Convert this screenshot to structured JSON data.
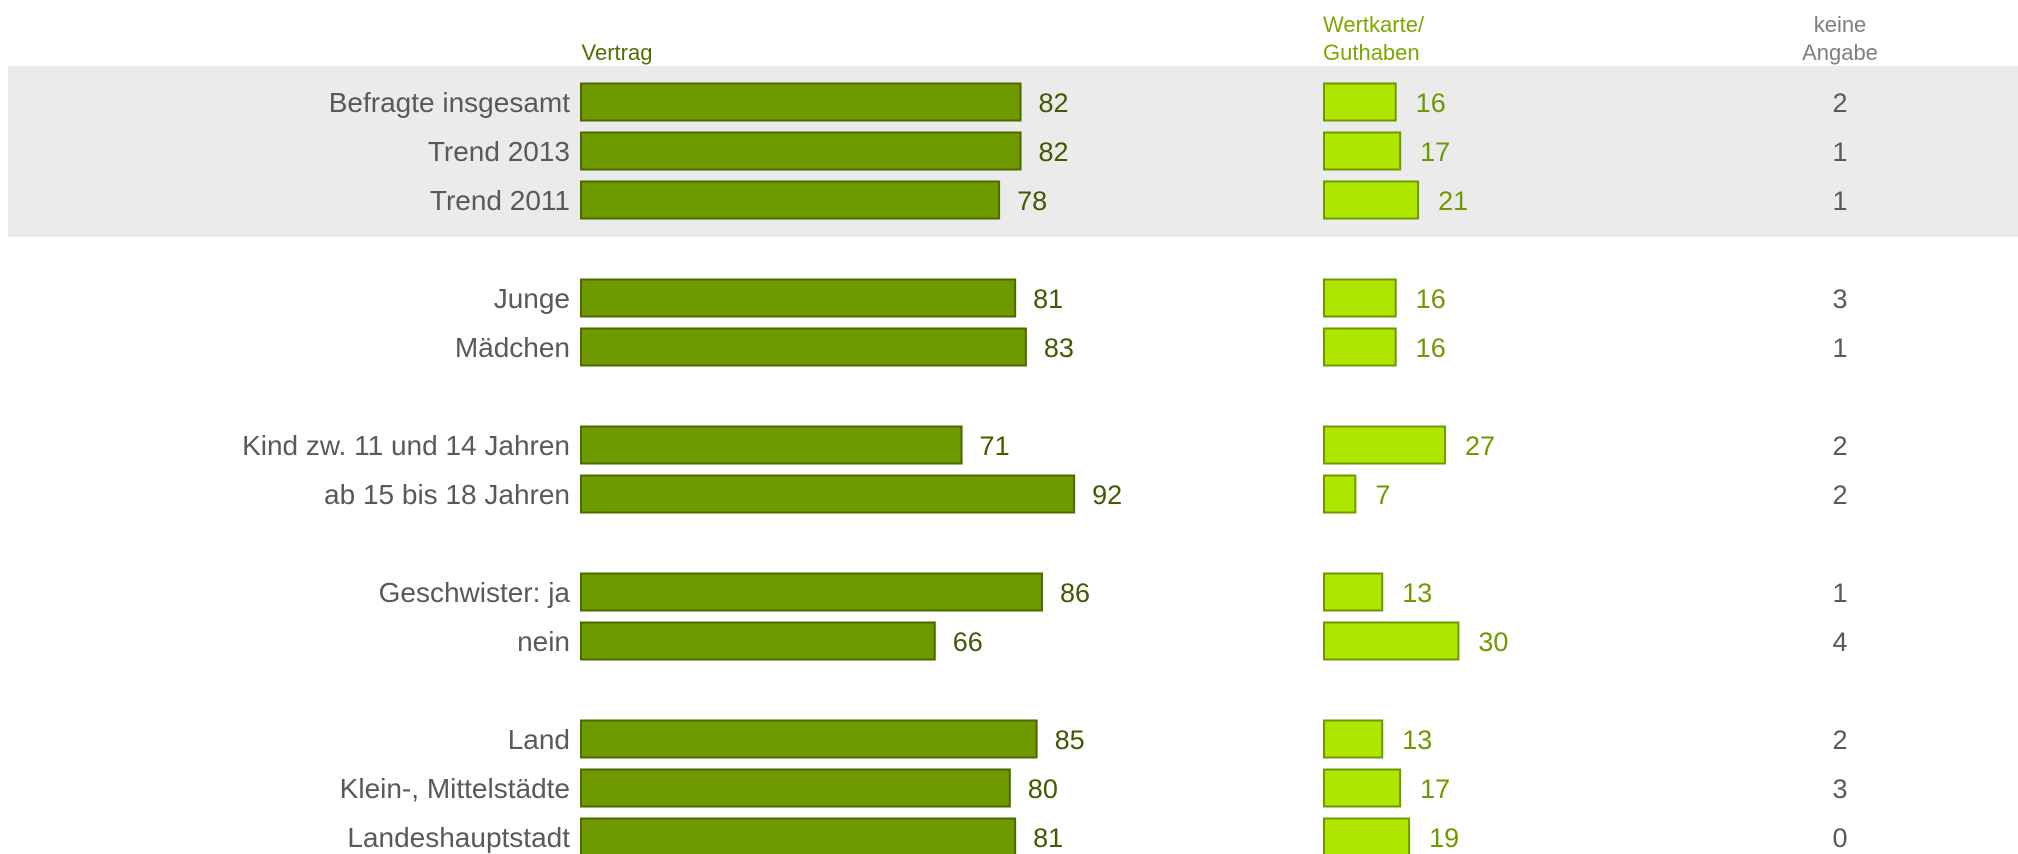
{
  "chart_data": {
    "type": "bar",
    "stacked": false,
    "series": [
      {
        "name": "Vertrag",
        "header_lines": [
          "Vertrag"
        ],
        "color": "#6e9a00",
        "values": [
          82,
          82,
          78,
          81,
          83,
          71,
          92,
          86,
          66,
          85,
          80,
          81
        ]
      },
      {
        "name": "Wertkarte/ Guthaben",
        "header_lines": [
          "Wertkarte/",
          "Guthaben"
        ],
        "color": "#aee600",
        "values": [
          16,
          17,
          21,
          16,
          16,
          27,
          7,
          13,
          30,
          13,
          17,
          19
        ]
      },
      {
        "name": "keine Angabe",
        "header_lines": [
          "keine",
          "Angabe"
        ],
        "color": "#595959",
        "values": [
          2,
          1,
          1,
          3,
          1,
          2,
          2,
          1,
          4,
          2,
          3,
          0
        ]
      }
    ],
    "categories": [
      "Befragte insgesamt",
      "Trend 2013",
      "Trend 2011",
      "Junge",
      "Mädchen",
      "Kind zw. 11 und 14 Jahren",
      "ab 15 bis 18 Jahren",
      "Geschwister: ja",
      "nein",
      "Land",
      "Klein-, Mittelstädte",
      "Landeshauptstadt"
    ],
    "groups": [
      [
        0,
        1,
        2
      ],
      [
        3,
        4
      ],
      [
        5,
        6
      ],
      [
        7,
        8
      ],
      [
        9,
        10,
        11
      ]
    ],
    "highlighted_group": 0,
    "colors": {
      "highlight_band": "#ebebeb",
      "value_dark": "#3f5a00",
      "value_light": "#6e9a00",
      "text": "#595959"
    }
  }
}
